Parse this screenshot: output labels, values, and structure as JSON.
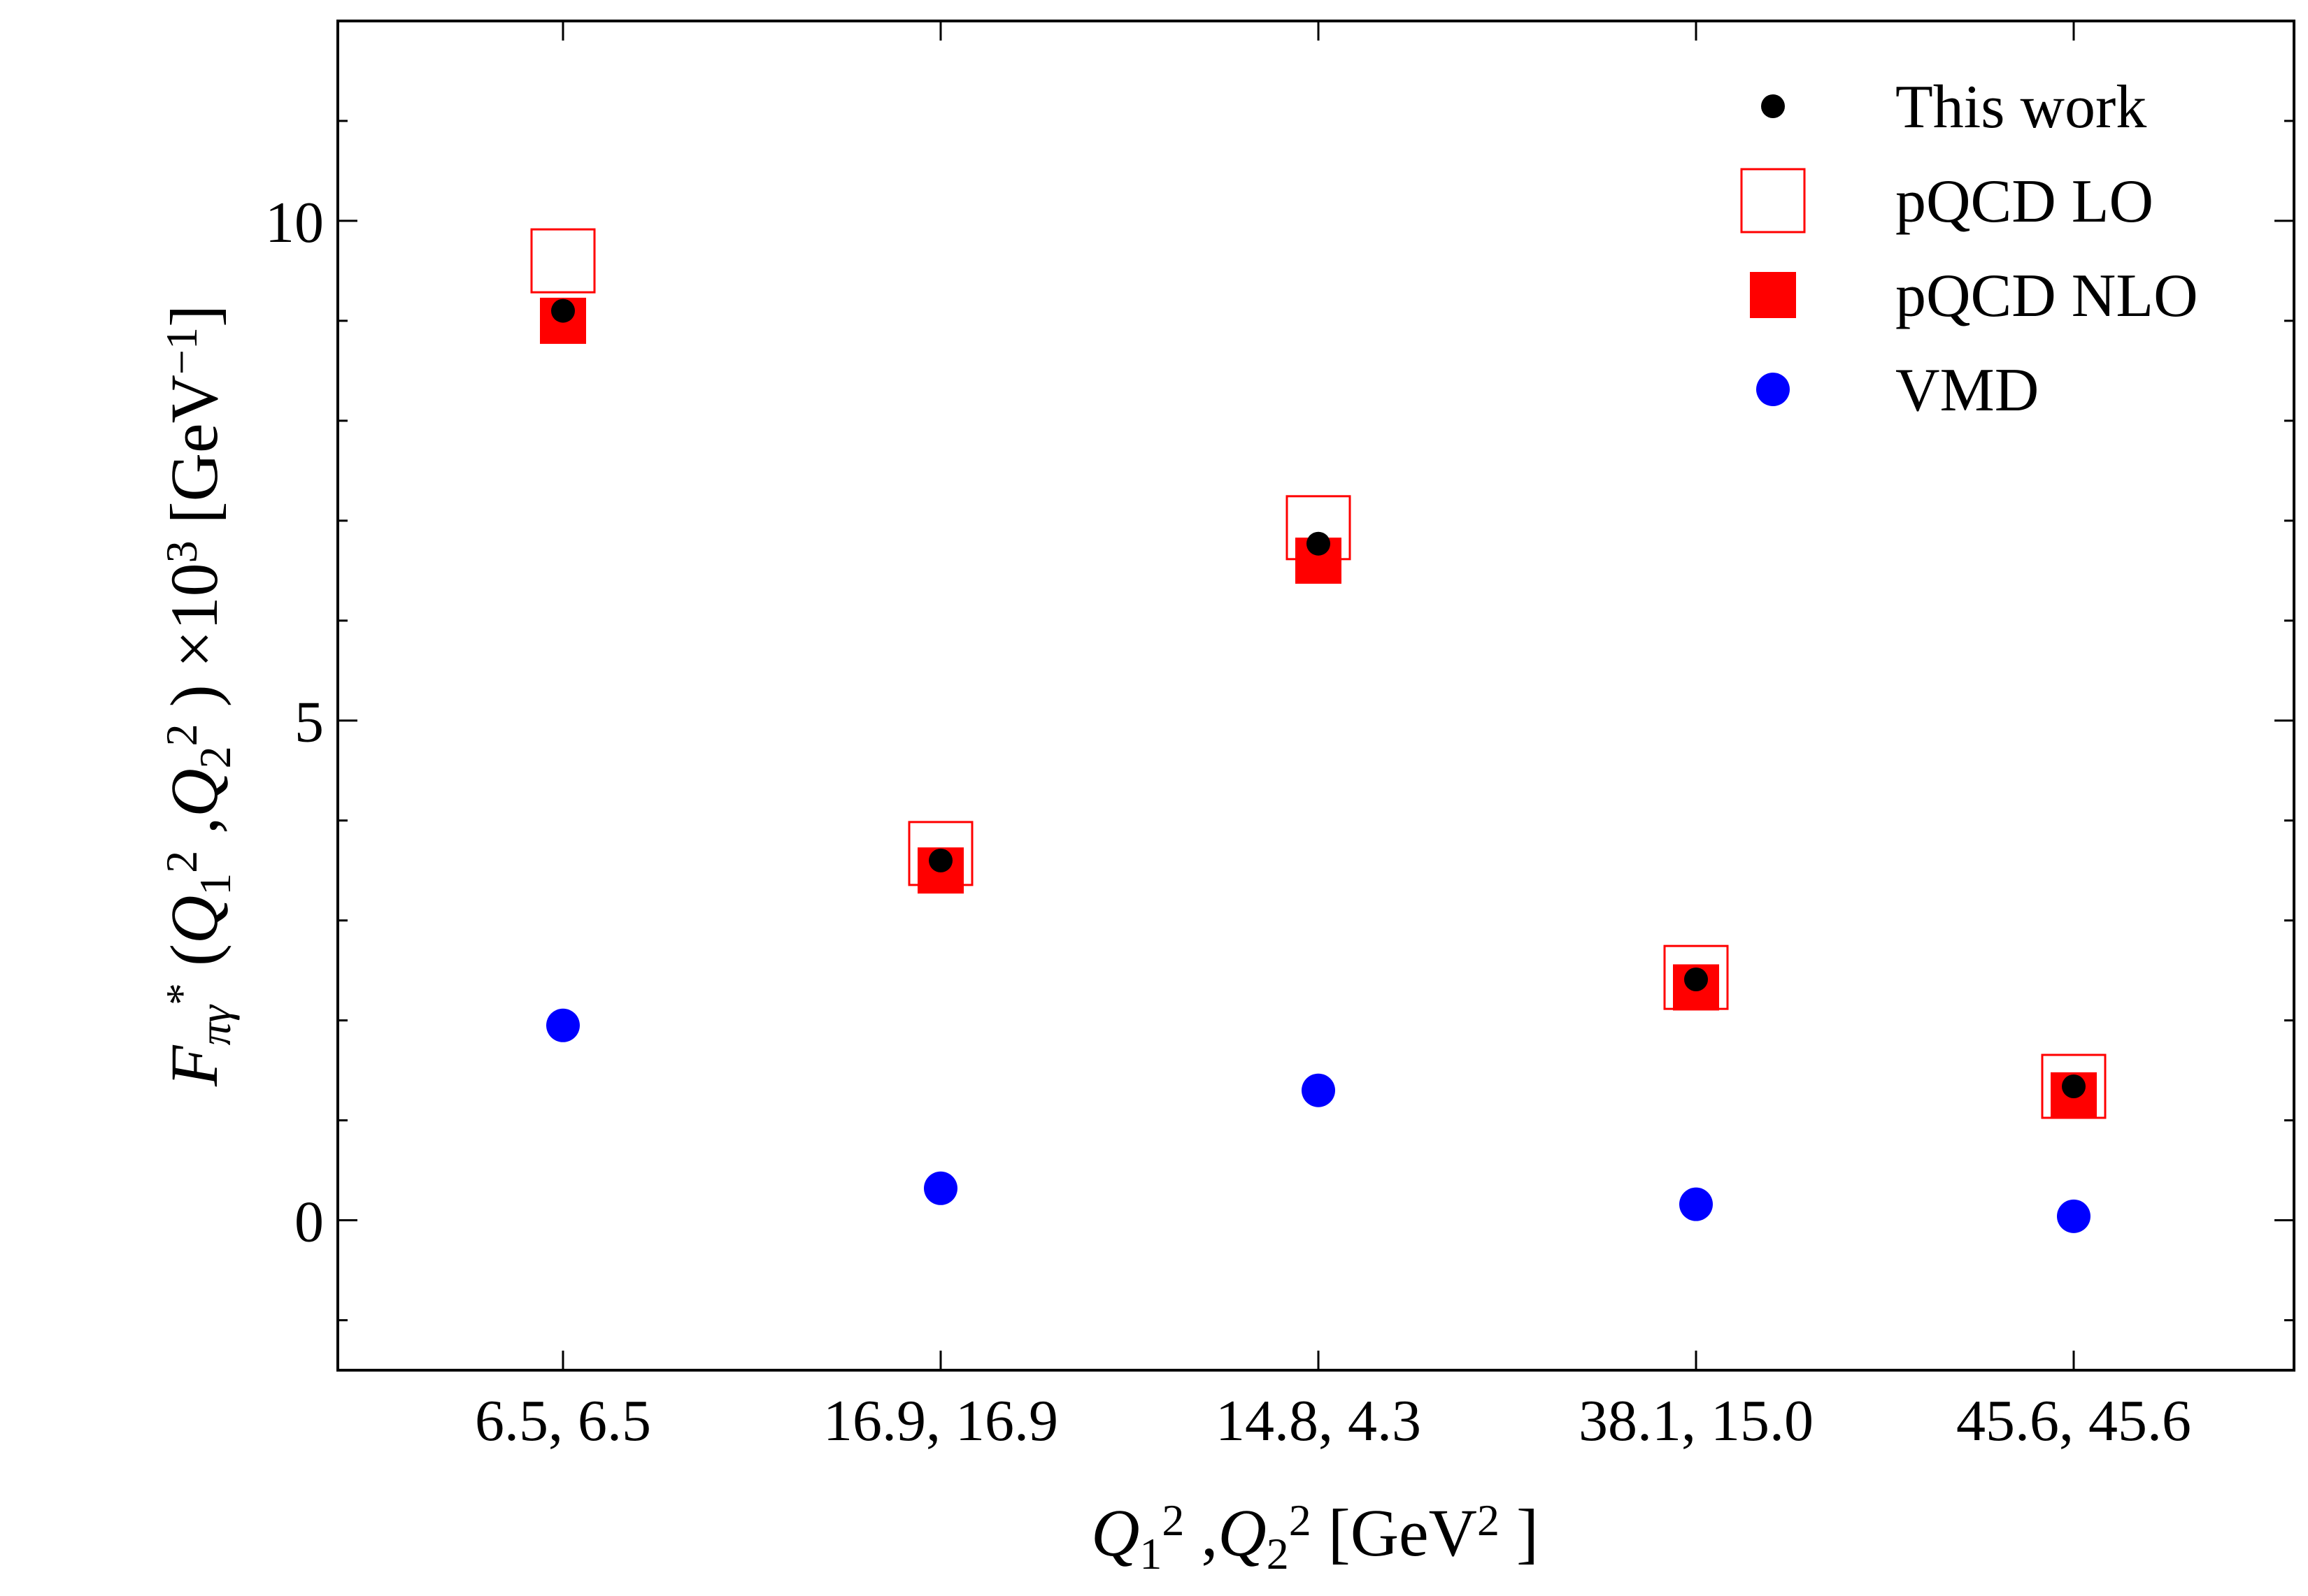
{
  "chart_data": {
    "type": "scatter",
    "categories": [
      "6.5, 6.5",
      "16.9, 16.9",
      "14.8, 4.3",
      "38.1, 15.0",
      "45.6, 45.6"
    ],
    "xlabel": {
      "parts": [
        {
          "t": "Q",
          "i": true
        },
        {
          "t": "1",
          "sub": true
        },
        {
          "t": "2",
          "sup": true
        },
        {
          "t": " ,"
        },
        {
          "t": "Q",
          "i": true
        },
        {
          "t": "2",
          "sub": true
        },
        {
          "t": "2",
          "sup": true
        },
        {
          "t": "  [GeV"
        },
        {
          "t": "2",
          "sup": true
        },
        {
          "t": " ]"
        }
      ]
    },
    "ylabel": {
      "parts": [
        {
          "t": "F",
          "i": true
        },
        {
          "t": "πγ",
          "sub": true,
          "i": true
        },
        {
          "t": "*",
          "sup": true
        },
        {
          "t": " ("
        },
        {
          "t": "Q",
          "i": true
        },
        {
          "t": "1",
          "sub": true
        },
        {
          "t": "2",
          "sup": true
        },
        {
          "t": " ,"
        },
        {
          "t": "Q",
          "i": true
        },
        {
          "t": "2",
          "sub": true
        },
        {
          "t": "2",
          "sup": true
        },
        {
          "t": " ) ×10"
        },
        {
          "t": "3",
          "sup": true
        },
        {
          "t": "  [GeV"
        },
        {
          "t": "−1",
          "sup": true
        },
        {
          "t": "]"
        }
      ]
    },
    "ylim": [
      -1.5,
      12.0
    ],
    "yticks": [
      0,
      5,
      10
    ],
    "grid": false,
    "legend_position": "top-right",
    "series": [
      {
        "name": "pQCD LO",
        "marker": "open-square",
        "color": "#ff0000",
        "values": [
          9.6,
          3.67,
          6.93,
          2.43,
          1.34
        ]
      },
      {
        "name": "pQCD NLO",
        "marker": "filled-square",
        "color": "#ff0000",
        "values": [
          9.0,
          3.5,
          6.6,
          2.33,
          1.25
        ]
      },
      {
        "name": "This work",
        "marker": "small-dot",
        "color": "#000000",
        "values": [
          9.1,
          3.6,
          6.77,
          2.41,
          1.34
        ]
      },
      {
        "name": "VMD",
        "marker": "dot",
        "color": "#0000ff",
        "values": [
          1.95,
          0.32,
          1.3,
          0.16,
          0.04
        ]
      }
    ],
    "legend_order": [
      "This work",
      "pQCD LO",
      "pQCD NLO",
      "VMD"
    ]
  }
}
